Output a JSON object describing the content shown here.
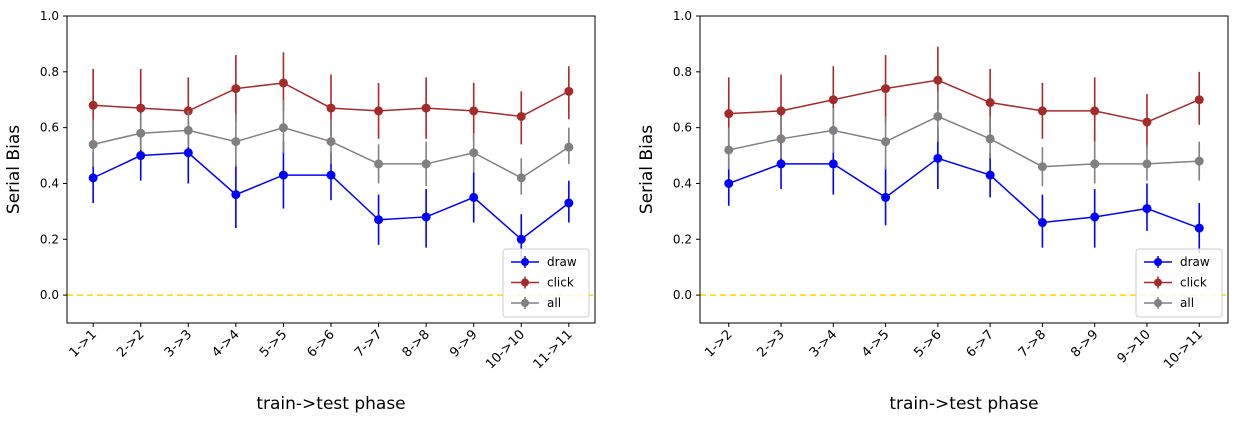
{
  "chart_data": [
    {
      "type": "line",
      "title": "",
      "xlabel": "train->test phase",
      "ylabel": "Serial Bias",
      "ylim": [
        -0.1,
        1.0
      ],
      "yticks": [
        "0.0",
        "0.2",
        "0.4",
        "0.6",
        "0.8",
        "1.0"
      ],
      "categories": [
        "1->1",
        "2->2",
        "3->3",
        "4->4",
        "5->5",
        "6->6",
        "7->7",
        "8->8",
        "9->9",
        "10->10",
        "11->11"
      ],
      "reference_line": {
        "y": 0.0,
        "color": "#ffd700",
        "style": "dashed"
      },
      "legend_position": "lower-right",
      "series": [
        {
          "name": "draw",
          "color": "#0000ff",
          "values": [
            0.42,
            0.5,
            0.51,
            0.36,
            0.43,
            0.43,
            0.27,
            0.28,
            0.35,
            0.2,
            0.33
          ],
          "err_low": [
            0.33,
            0.41,
            0.4,
            0.24,
            0.31,
            0.34,
            0.18,
            0.17,
            0.26,
            0.13,
            0.26
          ],
          "err_high": [
            0.51,
            0.58,
            0.62,
            0.47,
            0.55,
            0.51,
            0.36,
            0.38,
            0.44,
            0.29,
            0.41
          ]
        },
        {
          "name": "click",
          "color": "#a52a2a",
          "values": [
            0.68,
            0.67,
            0.66,
            0.74,
            0.76,
            0.67,
            0.66,
            0.67,
            0.66,
            0.64,
            0.73
          ],
          "err_low": [
            0.55,
            0.54,
            0.54,
            0.62,
            0.66,
            0.57,
            0.56,
            0.56,
            0.55,
            0.54,
            0.63
          ],
          "err_high": [
            0.81,
            0.81,
            0.78,
            0.86,
            0.87,
            0.79,
            0.76,
            0.78,
            0.76,
            0.73,
            0.82
          ]
        },
        {
          "name": "all",
          "color": "#808080",
          "values": [
            0.54,
            0.58,
            0.59,
            0.55,
            0.6,
            0.55,
            0.47,
            0.47,
            0.51,
            0.42,
            0.53
          ],
          "err_low": [
            0.46,
            0.52,
            0.53,
            0.46,
            0.51,
            0.47,
            0.4,
            0.39,
            0.44,
            0.36,
            0.47
          ],
          "err_high": [
            0.63,
            0.65,
            0.66,
            0.65,
            0.7,
            0.63,
            0.54,
            0.55,
            0.58,
            0.49,
            0.6
          ]
        }
      ]
    },
    {
      "type": "line",
      "title": "",
      "xlabel": "train->test phase",
      "ylabel": "Serial Bias",
      "ylim": [
        -0.1,
        1.0
      ],
      "yticks": [
        "0.0",
        "0.2",
        "0.4",
        "0.6",
        "0.8",
        "1.0"
      ],
      "categories": [
        "1->2",
        "2->3",
        "3->4",
        "4->5",
        "5->6",
        "6->7",
        "7->8",
        "8->9",
        "9->10",
        "10->11"
      ],
      "reference_line": {
        "y": 0.0,
        "color": "#ffd700",
        "style": "dashed"
      },
      "legend_position": "lower-right",
      "series": [
        {
          "name": "draw",
          "color": "#0000ff",
          "values": [
            0.4,
            0.47,
            0.47,
            0.35,
            0.49,
            0.43,
            0.26,
            0.28,
            0.31,
            0.24
          ],
          "err_low": [
            0.32,
            0.38,
            0.36,
            0.25,
            0.38,
            0.35,
            0.17,
            0.17,
            0.23,
            0.15
          ],
          "err_high": [
            0.48,
            0.56,
            0.58,
            0.46,
            0.6,
            0.51,
            0.36,
            0.38,
            0.4,
            0.33
          ]
        },
        {
          "name": "click",
          "color": "#a52a2a",
          "values": [
            0.65,
            0.66,
            0.7,
            0.74,
            0.77,
            0.69,
            0.66,
            0.66,
            0.62,
            0.7
          ],
          "err_low": [
            0.53,
            0.53,
            0.59,
            0.62,
            0.66,
            0.58,
            0.56,
            0.55,
            0.53,
            0.61
          ],
          "err_high": [
            0.78,
            0.79,
            0.82,
            0.86,
            0.89,
            0.81,
            0.76,
            0.78,
            0.72,
            0.8
          ]
        },
        {
          "name": "all",
          "color": "#808080",
          "values": [
            0.52,
            0.56,
            0.59,
            0.55,
            0.64,
            0.56,
            0.46,
            0.47,
            0.47,
            0.48
          ],
          "err_low": [
            0.45,
            0.49,
            0.51,
            0.45,
            0.55,
            0.49,
            0.39,
            0.4,
            0.41,
            0.41
          ],
          "err_high": [
            0.6,
            0.64,
            0.67,
            0.64,
            0.73,
            0.64,
            0.53,
            0.55,
            0.54,
            0.55
          ]
        }
      ]
    }
  ]
}
